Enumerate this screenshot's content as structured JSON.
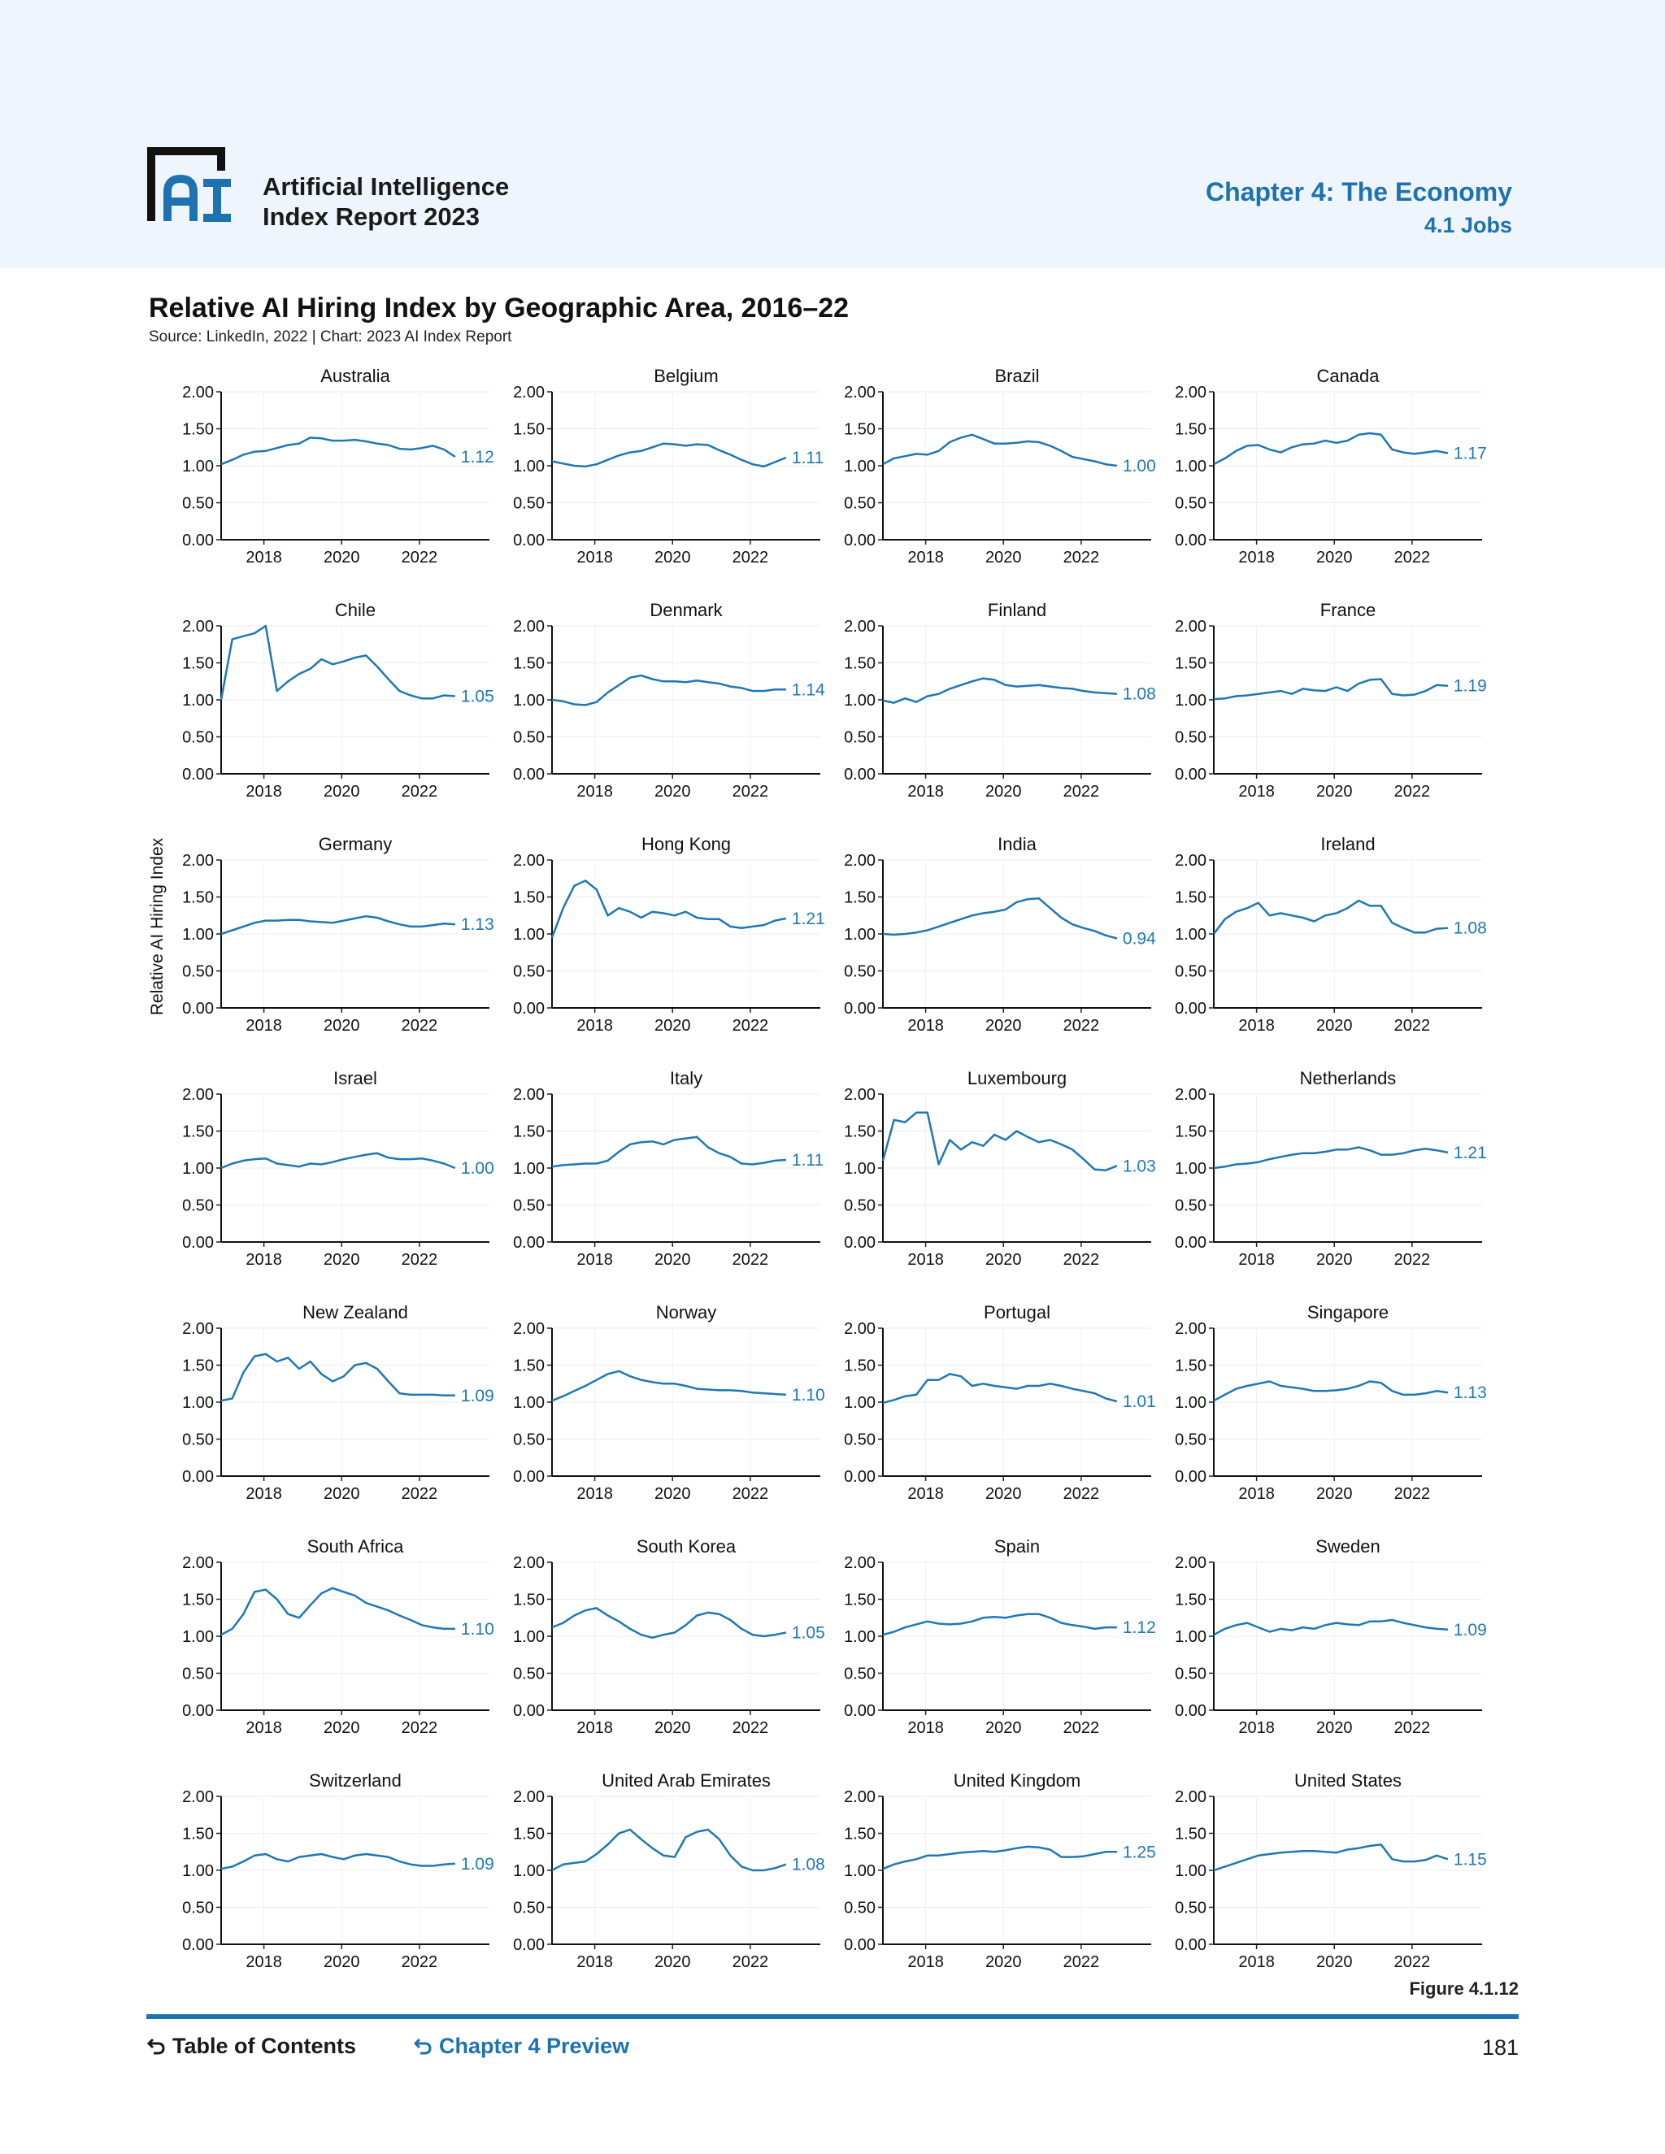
{
  "header": {
    "report_title_line1": "Artificial Intelligence",
    "report_title_line2": "Index Report 2023",
    "chapter": "Chapter 4: The Economy",
    "section": "4.1 Jobs",
    "accent_color": "#1e72b0",
    "band_color": "#eef5fc"
  },
  "chart_title": "Relative AI Hiring Index by Geographic Area, 2016–22",
  "chart_source": "Source: LinkedIn, 2022 | Chart: 2023 AI Index Report",
  "figure_label": "Figure 4.1.12",
  "footer": {
    "toc_label": "Table of Contents",
    "preview_label": "Chapter 4 Preview",
    "page_number": "181"
  },
  "chart_data": {
    "type": "line",
    "ylabel": "Relative AI Hiring Index",
    "ylim": [
      0,
      2
    ],
    "yticks": [
      "0.00",
      "0.50",
      "1.00",
      "1.50",
      "2.00"
    ],
    "xlim": [
      2016.9,
      2023.8
    ],
    "xticks": [
      "2018",
      "2020",
      "2022"
    ],
    "line_color": "#1f77b4",
    "x_start": 2016.9,
    "x_end": 2022.92,
    "series": [
      {
        "name": "Australia",
        "end_label": "1.12",
        "values": [
          1.02,
          1.08,
          1.15,
          1.19,
          1.2,
          1.24,
          1.28,
          1.3,
          1.38,
          1.37,
          1.34,
          1.34,
          1.35,
          1.33,
          1.3,
          1.28,
          1.23,
          1.22,
          1.24,
          1.27,
          1.22,
          1.12
        ]
      },
      {
        "name": "Belgium",
        "end_label": "1.11",
        "values": [
          1.06,
          1.03,
          1.0,
          0.99,
          1.02,
          1.08,
          1.14,
          1.18,
          1.2,
          1.25,
          1.3,
          1.29,
          1.27,
          1.29,
          1.28,
          1.21,
          1.15,
          1.08,
          1.02,
          0.99,
          1.05,
          1.11
        ]
      },
      {
        "name": "Brazil",
        "end_label": "1.00",
        "values": [
          1.02,
          1.1,
          1.13,
          1.16,
          1.15,
          1.2,
          1.32,
          1.38,
          1.42,
          1.36,
          1.3,
          1.3,
          1.31,
          1.33,
          1.32,
          1.27,
          1.2,
          1.12,
          1.09,
          1.06,
          1.02,
          1.0
        ]
      },
      {
        "name": "Canada",
        "end_label": "1.17",
        "values": [
          1.02,
          1.1,
          1.2,
          1.27,
          1.28,
          1.22,
          1.18,
          1.25,
          1.29,
          1.3,
          1.34,
          1.31,
          1.34,
          1.42,
          1.44,
          1.42,
          1.22,
          1.18,
          1.16,
          1.18,
          1.2,
          1.17
        ]
      },
      {
        "name": "Chile",
        "end_label": "1.05",
        "values": [
          1.0,
          1.82,
          1.86,
          1.9,
          2.0,
          1.12,
          1.25,
          1.35,
          1.42,
          1.55,
          1.48,
          1.52,
          1.57,
          1.6,
          1.45,
          1.28,
          1.12,
          1.06,
          1.02,
          1.02,
          1.06,
          1.05
        ]
      },
      {
        "name": "Denmark",
        "end_label": "1.14",
        "values": [
          1.0,
          0.98,
          0.94,
          0.93,
          0.97,
          1.1,
          1.2,
          1.3,
          1.33,
          1.28,
          1.25,
          1.25,
          1.24,
          1.26,
          1.24,
          1.22,
          1.18,
          1.16,
          1.12,
          1.12,
          1.14,
          1.14
        ]
      },
      {
        "name": "Finland",
        "end_label": "1.08",
        "values": [
          0.99,
          0.96,
          1.02,
          0.97,
          1.05,
          1.08,
          1.15,
          1.2,
          1.25,
          1.29,
          1.27,
          1.2,
          1.18,
          1.19,
          1.2,
          1.18,
          1.16,
          1.15,
          1.12,
          1.1,
          1.09,
          1.08
        ]
      },
      {
        "name": "France",
        "end_label": "1.19",
        "values": [
          1.01,
          1.02,
          1.05,
          1.06,
          1.08,
          1.1,
          1.12,
          1.08,
          1.15,
          1.13,
          1.12,
          1.17,
          1.12,
          1.22,
          1.27,
          1.28,
          1.08,
          1.06,
          1.07,
          1.12,
          1.2,
          1.19
        ]
      },
      {
        "name": "Germany",
        "end_label": "1.13",
        "values": [
          1.0,
          1.05,
          1.1,
          1.15,
          1.18,
          1.18,
          1.19,
          1.19,
          1.17,
          1.16,
          1.15,
          1.18,
          1.21,
          1.24,
          1.22,
          1.17,
          1.13,
          1.1,
          1.1,
          1.12,
          1.14,
          1.13
        ]
      },
      {
        "name": "Hong Kong",
        "end_label": "1.21",
        "values": [
          0.95,
          1.35,
          1.65,
          1.72,
          1.6,
          1.25,
          1.35,
          1.3,
          1.22,
          1.3,
          1.28,
          1.25,
          1.3,
          1.22,
          1.2,
          1.2,
          1.1,
          1.08,
          1.1,
          1.12,
          1.18,
          1.21
        ]
      },
      {
        "name": "India",
        "end_label": "0.94",
        "values": [
          1.0,
          0.99,
          1.0,
          1.02,
          1.05,
          1.1,
          1.15,
          1.2,
          1.25,
          1.28,
          1.3,
          1.33,
          1.43,
          1.47,
          1.48,
          1.35,
          1.22,
          1.13,
          1.08,
          1.04,
          0.98,
          0.94
        ]
      },
      {
        "name": "Ireland",
        "end_label": "1.08",
        "values": [
          1.0,
          1.2,
          1.3,
          1.35,
          1.42,
          1.25,
          1.28,
          1.25,
          1.22,
          1.17,
          1.25,
          1.28,
          1.35,
          1.45,
          1.38,
          1.38,
          1.15,
          1.08,
          1.02,
          1.02,
          1.07,
          1.08
        ]
      },
      {
        "name": "Israel",
        "end_label": "1.00",
        "values": [
          1.0,
          1.06,
          1.1,
          1.12,
          1.13,
          1.06,
          1.04,
          1.02,
          1.06,
          1.05,
          1.08,
          1.12,
          1.15,
          1.18,
          1.2,
          1.14,
          1.12,
          1.12,
          1.13,
          1.1,
          1.06,
          1.0
        ]
      },
      {
        "name": "Italy",
        "end_label": "1.11",
        "values": [
          1.02,
          1.04,
          1.05,
          1.06,
          1.06,
          1.1,
          1.22,
          1.32,
          1.35,
          1.36,
          1.32,
          1.38,
          1.4,
          1.42,
          1.28,
          1.2,
          1.15,
          1.06,
          1.05,
          1.07,
          1.1,
          1.11
        ]
      },
      {
        "name": "Luxembourg",
        "end_label": "1.03",
        "values": [
          1.1,
          1.65,
          1.62,
          1.75,
          1.75,
          1.05,
          1.38,
          1.25,
          1.35,
          1.3,
          1.45,
          1.38,
          1.5,
          1.42,
          1.35,
          1.38,
          1.32,
          1.25,
          1.12,
          0.98,
          0.97,
          1.03
        ]
      },
      {
        "name": "Netherlands",
        "end_label": "1.21",
        "values": [
          1.0,
          1.02,
          1.05,
          1.06,
          1.08,
          1.12,
          1.15,
          1.18,
          1.2,
          1.2,
          1.22,
          1.25,
          1.25,
          1.28,
          1.24,
          1.18,
          1.18,
          1.2,
          1.24,
          1.26,
          1.24,
          1.21
        ]
      },
      {
        "name": "New Zealand",
        "end_label": "1.09",
        "values": [
          1.02,
          1.05,
          1.4,
          1.62,
          1.65,
          1.55,
          1.6,
          1.45,
          1.55,
          1.38,
          1.28,
          1.35,
          1.5,
          1.53,
          1.45,
          1.28,
          1.12,
          1.1,
          1.1,
          1.1,
          1.09,
          1.09
        ]
      },
      {
        "name": "Norway",
        "end_label": "1.10",
        "values": [
          1.02,
          1.08,
          1.15,
          1.22,
          1.3,
          1.38,
          1.42,
          1.35,
          1.3,
          1.27,
          1.25,
          1.25,
          1.22,
          1.18,
          1.17,
          1.16,
          1.16,
          1.15,
          1.13,
          1.12,
          1.11,
          1.1
        ]
      },
      {
        "name": "Portugal",
        "end_label": "1.01",
        "values": [
          0.99,
          1.03,
          1.08,
          1.1,
          1.3,
          1.3,
          1.38,
          1.35,
          1.22,
          1.25,
          1.22,
          1.2,
          1.18,
          1.22,
          1.22,
          1.25,
          1.22,
          1.18,
          1.15,
          1.12,
          1.05,
          1.01
        ]
      },
      {
        "name": "Singapore",
        "end_label": "1.13",
        "values": [
          1.02,
          1.1,
          1.18,
          1.22,
          1.25,
          1.28,
          1.22,
          1.2,
          1.18,
          1.15,
          1.15,
          1.16,
          1.18,
          1.22,
          1.28,
          1.26,
          1.15,
          1.1,
          1.1,
          1.12,
          1.15,
          1.13
        ]
      },
      {
        "name": "South Africa",
        "end_label": "1.10",
        "values": [
          1.02,
          1.1,
          1.3,
          1.6,
          1.63,
          1.5,
          1.3,
          1.25,
          1.42,
          1.58,
          1.65,
          1.6,
          1.55,
          1.45,
          1.4,
          1.35,
          1.28,
          1.22,
          1.15,
          1.12,
          1.1,
          1.1
        ]
      },
      {
        "name": "South Korea",
        "end_label": "1.05",
        "values": [
          1.12,
          1.18,
          1.28,
          1.35,
          1.38,
          1.28,
          1.2,
          1.1,
          1.02,
          0.98,
          1.02,
          1.05,
          1.15,
          1.28,
          1.32,
          1.3,
          1.22,
          1.1,
          1.02,
          1.0,
          1.02,
          1.05
        ]
      },
      {
        "name": "Spain",
        "end_label": "1.12",
        "values": [
          1.02,
          1.06,
          1.12,
          1.16,
          1.2,
          1.17,
          1.16,
          1.17,
          1.2,
          1.25,
          1.26,
          1.25,
          1.28,
          1.3,
          1.3,
          1.25,
          1.18,
          1.15,
          1.13,
          1.1,
          1.12,
          1.12
        ]
      },
      {
        "name": "Sweden",
        "end_label": "1.09",
        "values": [
          1.02,
          1.1,
          1.15,
          1.18,
          1.12,
          1.06,
          1.1,
          1.08,
          1.12,
          1.1,
          1.15,
          1.18,
          1.16,
          1.15,
          1.2,
          1.2,
          1.22,
          1.18,
          1.15,
          1.12,
          1.1,
          1.09
        ]
      },
      {
        "name": "Switzerland",
        "end_label": "1.09",
        "values": [
          1.02,
          1.05,
          1.12,
          1.2,
          1.22,
          1.15,
          1.12,
          1.18,
          1.2,
          1.22,
          1.18,
          1.15,
          1.2,
          1.22,
          1.2,
          1.18,
          1.12,
          1.08,
          1.06,
          1.06,
          1.08,
          1.09
        ]
      },
      {
        "name": "United Arab Emirates",
        "end_label": "1.08",
        "values": [
          1.0,
          1.08,
          1.1,
          1.12,
          1.22,
          1.35,
          1.5,
          1.55,
          1.42,
          1.3,
          1.2,
          1.18,
          1.45,
          1.52,
          1.55,
          1.42,
          1.2,
          1.05,
          1.0,
          1.0,
          1.03,
          1.08
        ]
      },
      {
        "name": "United Kingdom",
        "end_label": "1.25",
        "values": [
          1.02,
          1.08,
          1.12,
          1.15,
          1.2,
          1.2,
          1.22,
          1.24,
          1.25,
          1.26,
          1.25,
          1.27,
          1.3,
          1.32,
          1.31,
          1.28,
          1.18,
          1.18,
          1.19,
          1.22,
          1.25,
          1.25
        ]
      },
      {
        "name": "United States",
        "end_label": "1.15",
        "values": [
          1.0,
          1.05,
          1.1,
          1.15,
          1.2,
          1.22,
          1.24,
          1.25,
          1.26,
          1.26,
          1.25,
          1.24,
          1.28,
          1.3,
          1.33,
          1.35,
          1.15,
          1.12,
          1.12,
          1.14,
          1.2,
          1.15
        ]
      }
    ]
  }
}
